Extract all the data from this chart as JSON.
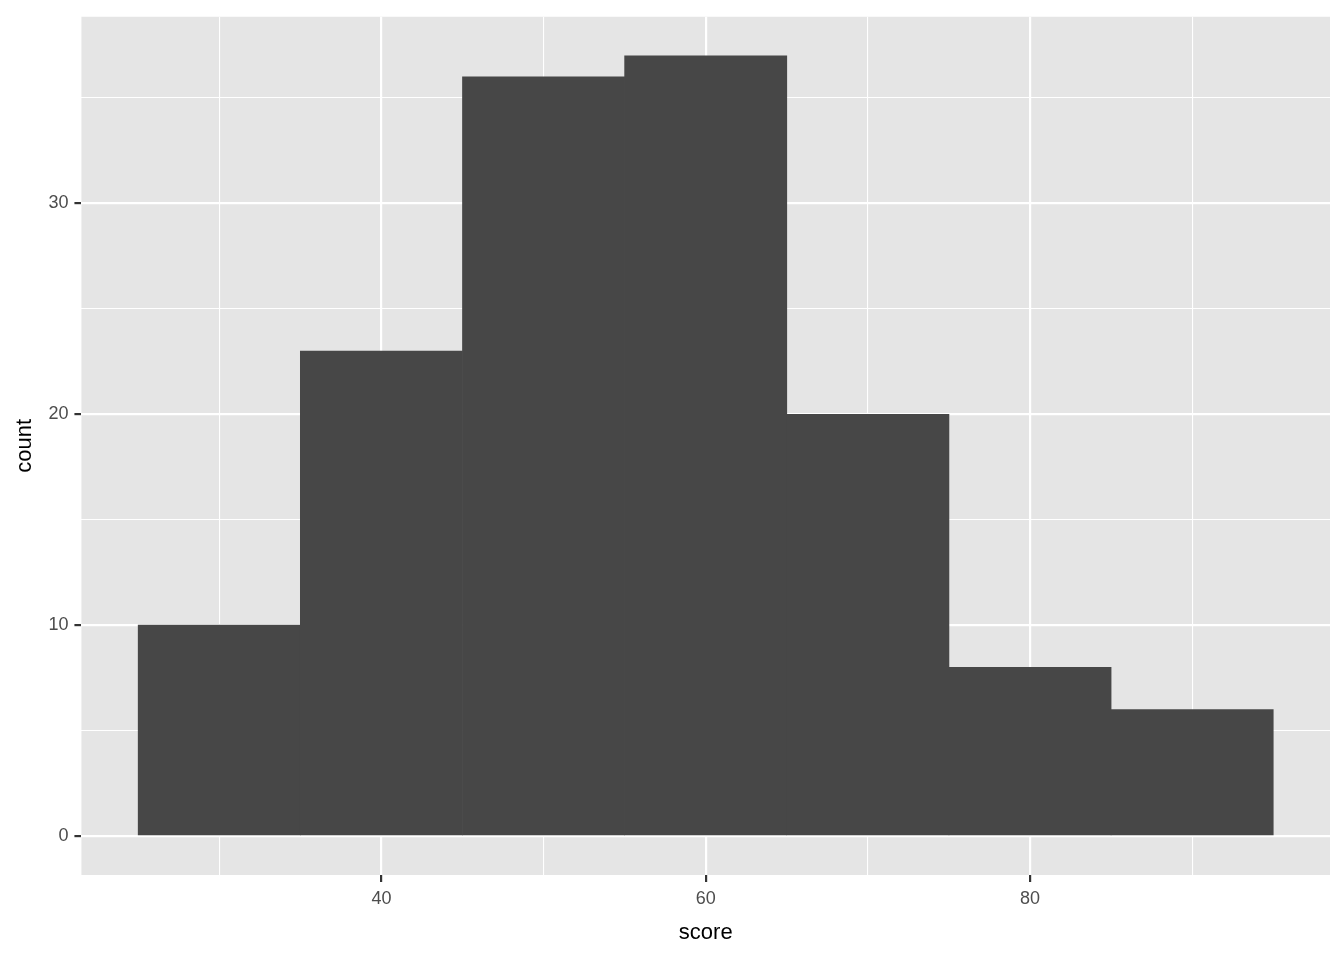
{
  "chart_data": {
    "type": "histogram",
    "xlabel": "score",
    "ylabel": "count",
    "bins": [
      25,
      35,
      45,
      55,
      65,
      75,
      85,
      95
    ],
    "values": [
      10,
      23,
      36,
      37,
      20,
      8,
      6
    ],
    "color": "#474747",
    "xlim": [
      21.5,
      98.5
    ],
    "xticks": [
      {
        "value": 30,
        "label": null
      },
      40,
      {
        "value": 50,
        "label": null
      },
      60,
      {
        "value": 70,
        "label": null
      },
      80,
      {
        "value": 90,
        "label": null
      }
    ],
    "ylim": [
      -1.85,
      38.85
    ],
    "yticks": [
      0,
      {
        "value": 5,
        "label": null
      },
      10,
      {
        "value": 15,
        "label": null
      },
      20,
      {
        "value": 25,
        "label": null
      },
      30,
      {
        "value": 35,
        "label": null
      }
    ],
    "grid": true
  }
}
